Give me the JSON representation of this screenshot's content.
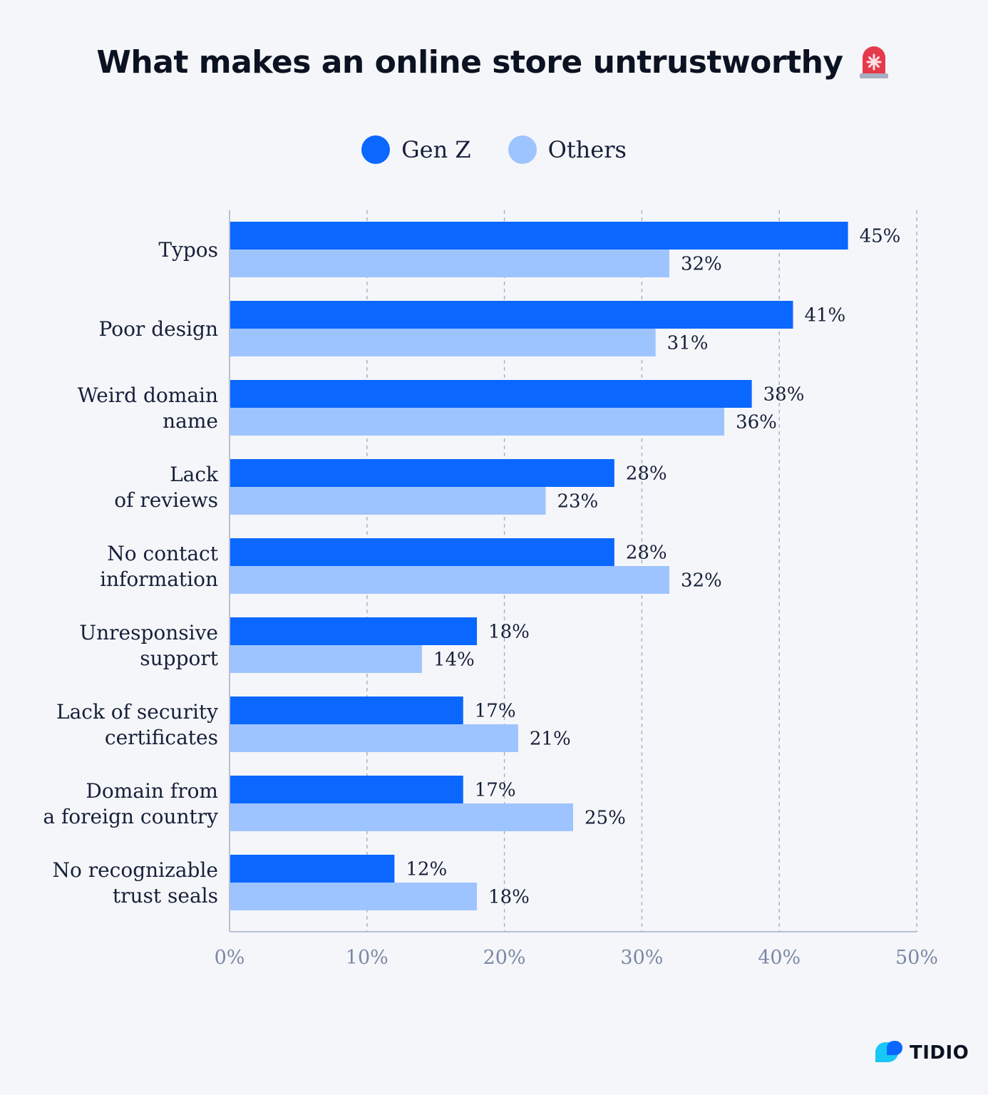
{
  "header": {
    "title": "What makes an online store untrustworthy",
    "title_icon": "siren-icon"
  },
  "legend": {
    "items": [
      {
        "label": "Gen Z",
        "color": "#0a67ff"
      },
      {
        "label": "Others",
        "color": "#9ec4ff"
      }
    ]
  },
  "colors": {
    "genz": "#0a67ff",
    "others": "#9ec4ff",
    "axis": "#b5c0d6",
    "grid": "#a7b1c6",
    "tick_text": "#7a88a6"
  },
  "chart_data": {
    "type": "bar",
    "orientation": "horizontal",
    "title": "What makes an online store untrustworthy",
    "xlabel": "",
    "ylabel": "",
    "categories": [
      [
        "Typos"
      ],
      [
        "Poor design"
      ],
      [
        "Weird domain",
        "name"
      ],
      [
        "Lack",
        "of reviews"
      ],
      [
        "No contact",
        "information"
      ],
      [
        "Unresponsive",
        "support"
      ],
      [
        "Lack of security",
        "certificates"
      ],
      [
        "Domain from",
        "a foreign country"
      ],
      [
        "No recognizable",
        "trust seals"
      ]
    ],
    "series": [
      {
        "name": "Gen Z",
        "values": [
          45,
          41,
          38,
          28,
          28,
          18,
          17,
          17,
          12
        ],
        "labels": [
          "45%",
          "41%",
          "38%",
          "28%",
          "28%",
          "18%",
          "17%",
          "17%",
          "12%"
        ]
      },
      {
        "name": "Others",
        "values": [
          32,
          31,
          36,
          23,
          32,
          14,
          21,
          25,
          18
        ],
        "labels": [
          "32%",
          "31%",
          "36%",
          "23%",
          "32%",
          "14%",
          "21%",
          "25%",
          "18%"
        ]
      }
    ],
    "xlim": [
      0,
      50
    ],
    "xticks": [
      0,
      10,
      20,
      30,
      40,
      50
    ],
    "xtick_labels": [
      "0%",
      "10%",
      "20%",
      "30%",
      "40%",
      "50%"
    ],
    "grid": true,
    "legend_position": "top-center"
  },
  "branding": {
    "logo_text": "TIDIO",
    "logo_icon": "tidio-logo-icon"
  }
}
